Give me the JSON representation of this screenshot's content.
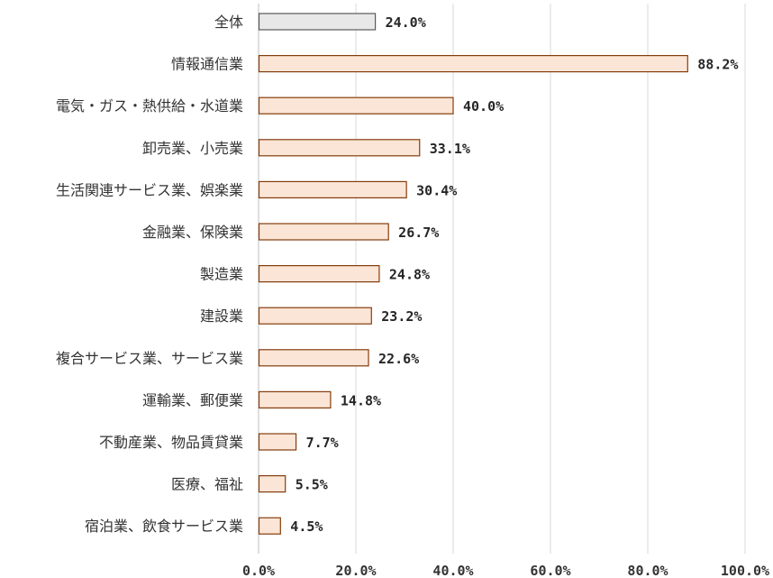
{
  "chart_data": {
    "type": "bar",
    "orientation": "horizontal",
    "categories": [
      "全体",
      "情報通信業",
      "電気・ガス・熱供給・水道業",
      "卸売業、小売業",
      "生活関連サービス業、娯楽業",
      "金融業、保険業",
      "製造業",
      "建設業",
      "複合サービス業、サービス業",
      "運輸業、郵便業",
      "不動産業、物品賃貸業",
      "医療、福祉",
      "宿泊業、飲食サービス業"
    ],
    "values": [
      24.0,
      88.2,
      40.0,
      33.1,
      30.4,
      26.7,
      24.8,
      23.2,
      22.6,
      14.8,
      7.7,
      5.5,
      4.5
    ],
    "value_labels": [
      "24.0%",
      "88.2%",
      "40.0%",
      "33.1%",
      "30.4%",
      "26.7%",
      "24.8%",
      "23.2%",
      "22.6%",
      "14.8%",
      "7.7%",
      "5.5%",
      "4.5%"
    ],
    "x_ticks": [
      0,
      20,
      40,
      60,
      80,
      100
    ],
    "x_tick_labels": [
      "0.0%",
      "20.0%",
      "40.0%",
      "60.0%",
      "80.0%",
      "100.0%"
    ],
    "xlim": [
      0,
      100
    ],
    "grid": true,
    "colors": {
      "total_fill": "#e8e8e8",
      "total_stroke": "#595959",
      "bar_fill": "#fbe5d6",
      "bar_stroke": "#843c0c"
    },
    "title": "",
    "xlabel": "",
    "ylabel": ""
  }
}
